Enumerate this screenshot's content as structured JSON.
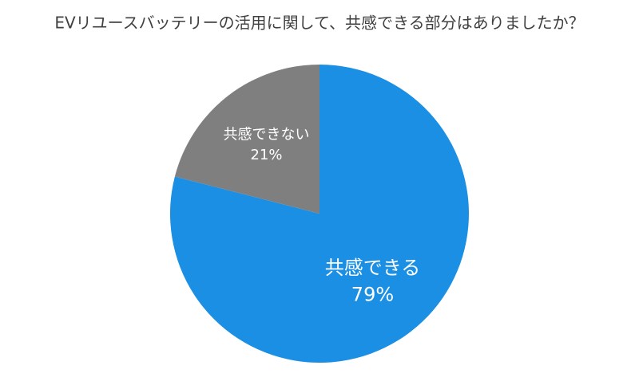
{
  "chart_data": {
    "type": "pie",
    "title": "EVリユースバッテリーの活用に関して、共感できる部分はありましたか？",
    "categories": [
      "共感できる",
      "共感できない"
    ],
    "values": [
      79,
      21
    ],
    "value_labels": [
      "79%",
      "21%"
    ],
    "colors": [
      "#1a8fe3",
      "#7f7f7f"
    ]
  }
}
